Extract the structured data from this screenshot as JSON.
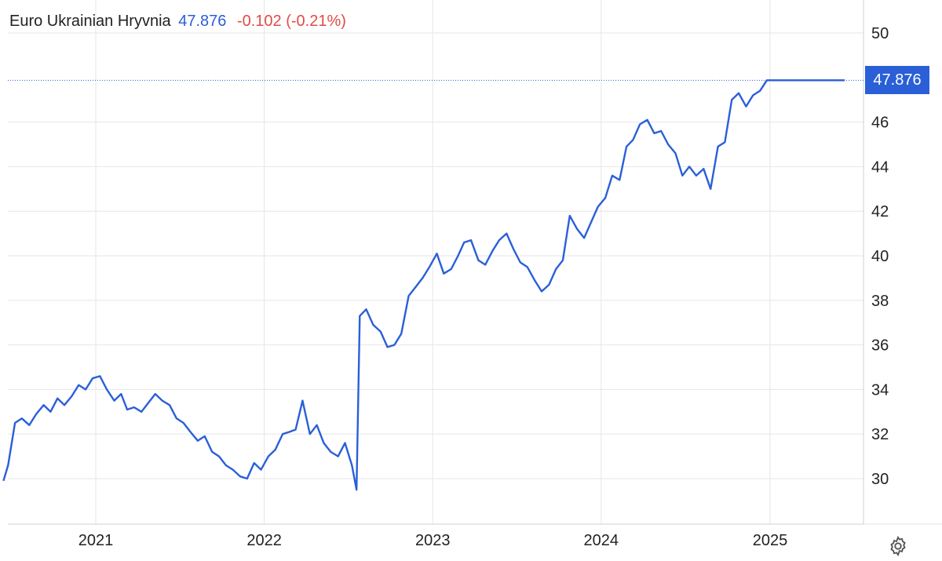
{
  "header": {
    "name": "Euro Ukrainian Hryvnia",
    "price": "47.876",
    "change": "-0.102 (-0.21%)"
  },
  "colors": {
    "line": "#2a5fd8",
    "positive": "#2a5fd8",
    "negative": "#e04b46",
    "grid": "#e6e6e6"
  },
  "settings_icon": "gear-icon",
  "chart_data": {
    "type": "line",
    "title": "",
    "xlabel": "",
    "ylabel": "",
    "grid": true,
    "ylim": [
      28,
      51
    ],
    "x_ticks": [
      "2021",
      "2022",
      "2023",
      "2024",
      "2025"
    ],
    "y_ticks": [
      30,
      32,
      34,
      36,
      38,
      40,
      42,
      44,
      46,
      50
    ],
    "last_value_label": "47.876",
    "series": [
      {
        "x": [
          "2020-06-15",
          "2020-06-25",
          "2020-07-10",
          "2020-07-25",
          "2020-08-10",
          "2020-08-25",
          "2020-09-10",
          "2020-09-25",
          "2020-10-10",
          "2020-10-25",
          "2020-11-10",
          "2020-11-25",
          "2020-12-10",
          "2020-12-25",
          "2021-01-10",
          "2021-01-25",
          "2021-02-10",
          "2021-02-25",
          "2021-03-10",
          "2021-03-25",
          "2021-04-10",
          "2021-04-25",
          "2021-05-10",
          "2021-05-25",
          "2021-06-10",
          "2021-06-25",
          "2021-07-10",
          "2021-07-25",
          "2021-08-10",
          "2021-08-25",
          "2021-09-10",
          "2021-09-25",
          "2021-10-10",
          "2021-10-25",
          "2021-11-10",
          "2021-11-25",
          "2021-12-10",
          "2021-12-25",
          "2022-01-10",
          "2022-01-25",
          "2022-02-10",
          "2022-02-25",
          "2022-03-10",
          "2022-03-25",
          "2022-04-10",
          "2022-04-25",
          "2022-05-10",
          "2022-05-25",
          "2022-06-10",
          "2022-06-25",
          "2022-07-10",
          "2022-07-20",
          "2022-07-27",
          "2022-08-10",
          "2022-08-25",
          "2022-09-10",
          "2022-09-25",
          "2022-10-10",
          "2022-10-25",
          "2022-11-10",
          "2022-11-25",
          "2022-12-10",
          "2022-12-25",
          "2023-01-10",
          "2023-01-25",
          "2023-02-10",
          "2023-02-25",
          "2023-03-10",
          "2023-03-25",
          "2023-04-10",
          "2023-04-25",
          "2023-05-10",
          "2023-05-25",
          "2023-06-10",
          "2023-06-25",
          "2023-07-10",
          "2023-07-25",
          "2023-08-10",
          "2023-08-25",
          "2023-09-10",
          "2023-09-25",
          "2023-10-10",
          "2023-10-25",
          "2023-11-10",
          "2023-11-25",
          "2023-12-10",
          "2023-12-25",
          "2024-01-10",
          "2024-01-25",
          "2024-02-10",
          "2024-02-25",
          "2024-03-10",
          "2024-03-25",
          "2024-04-10",
          "2024-04-25",
          "2024-05-10",
          "2024-05-25",
          "2024-06-10",
          "2024-06-25",
          "2024-07-10",
          "2024-07-25",
          "2024-08-10",
          "2024-08-25",
          "2024-09-10",
          "2024-09-25",
          "2024-10-10",
          "2024-10-25",
          "2024-11-10",
          "2024-11-25",
          "2024-12-10",
          "2024-12-25",
          "2025-01-10",
          "2025-01-25",
          "2025-02-10",
          "2025-02-25",
          "2025-03-10",
          "2025-03-25",
          "2025-04-10",
          "2025-04-25",
          "2025-05-10",
          "2025-05-25",
          "2025-06-10"
        ],
        "values": [
          29.9,
          30.6,
          32.5,
          32.7,
          32.4,
          32.9,
          33.3,
          33.0,
          33.6,
          33.3,
          33.7,
          34.2,
          34.0,
          34.5,
          34.6,
          34.0,
          33.5,
          33.8,
          33.1,
          33.2,
          33.0,
          33.4,
          33.8,
          33.5,
          33.3,
          32.7,
          32.5,
          32.1,
          31.7,
          31.9,
          31.2,
          31.0,
          30.6,
          30.4,
          30.1,
          30.0,
          30.7,
          30.4,
          31.0,
          31.3,
          32.0,
          32.1,
          32.2,
          33.5,
          32.0,
          32.4,
          31.6,
          31.2,
          31.0,
          31.6,
          30.6,
          29.5,
          37.3,
          37.6,
          36.9,
          36.6,
          35.9,
          36.0,
          36.5,
          38.2,
          38.6,
          39.0,
          39.5,
          40.1,
          39.2,
          39.4,
          40.0,
          40.6,
          40.7,
          39.8,
          39.6,
          40.2,
          40.7,
          41.0,
          40.3,
          39.7,
          39.5,
          38.9,
          38.4,
          38.7,
          39.4,
          39.8,
          41.8,
          41.2,
          40.8,
          41.5,
          42.2,
          42.6,
          43.6,
          43.4,
          44.9,
          45.2,
          45.9,
          46.1,
          45.5,
          45.6,
          45.0,
          44.6,
          43.6,
          44.0,
          43.6,
          43.9,
          43.0,
          44.9,
          45.1,
          47.0,
          47.3,
          46.7,
          47.2,
          47.4,
          47.876,
          47.876,
          47.876,
          47.876,
          47.876,
          47.876,
          47.876,
          47.876,
          47.876,
          47.876,
          47.876,
          47.876
        ]
      }
    ]
  }
}
